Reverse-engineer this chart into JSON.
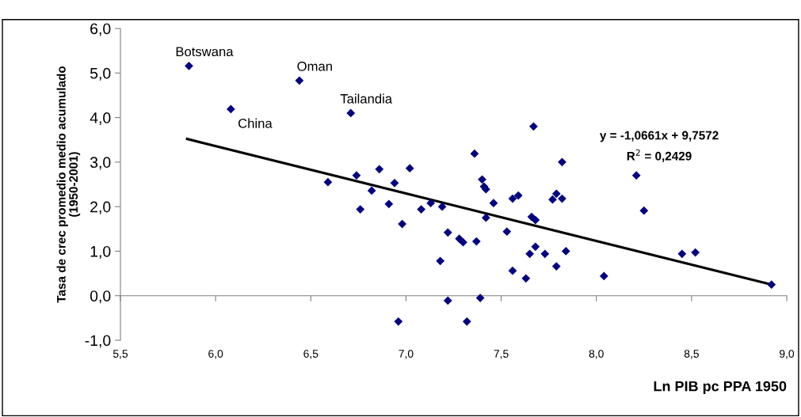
{
  "chart_data": {
    "type": "scatter",
    "xlabel": "Ln PIB pc PPA 1950",
    "ylabel": "Tasa de crec promedio medio acumulado\n(1950-2001)",
    "xlim": [
      5.5,
      9.0
    ],
    "ylim": [
      -1.0,
      6.0
    ],
    "xticks": [
      {
        "value": 5.5,
        "label": "5,5"
      },
      {
        "value": 6.0,
        "label": "6,0"
      },
      {
        "value": 6.5,
        "label": "6,5"
      },
      {
        "value": 7.0,
        "label": "7,0"
      },
      {
        "value": 7.5,
        "label": "7,5"
      },
      {
        "value": 8.0,
        "label": "8,0"
      },
      {
        "value": 8.5,
        "label": "8,5"
      },
      {
        "value": 9.0,
        "label": "9,0"
      }
    ],
    "yticks": [
      {
        "value": -1.0,
        "label": "-1,0"
      },
      {
        "value": 0.0,
        "label": "0,0"
      },
      {
        "value": 1.0,
        "label": "1,0"
      },
      {
        "value": 2.0,
        "label": "2,0"
      },
      {
        "value": 3.0,
        "label": "3,0"
      },
      {
        "value": 4.0,
        "label": "4,0"
      },
      {
        "value": 5.0,
        "label": "5,0"
      },
      {
        "value": 6.0,
        "label": "6,0"
      }
    ],
    "marker": "diamond",
    "series": [
      {
        "color": "#000080",
        "x": [
          5.86,
          6.08,
          6.44,
          6.71,
          6.59,
          6.74,
          6.86,
          7.02,
          6.82,
          6.94,
          6.76,
          6.91,
          6.98,
          7.08,
          7.13,
          7.19,
          7.22,
          7.18,
          7.28,
          7.3,
          7.37,
          7.36,
          7.4,
          7.41,
          7.42,
          7.46,
          7.42,
          7.22,
          7.39,
          6.96,
          7.32,
          7.53,
          7.56,
          7.59,
          7.56,
          7.63,
          7.65,
          7.68,
          7.66,
          7.68,
          7.73,
          7.67,
          7.82,
          7.77,
          7.79,
          7.82,
          7.79,
          7.84,
          8.04,
          8.21,
          8.25,
          8.45,
          8.52,
          8.92
        ],
        "values": [
          5.16,
          4.19,
          4.83,
          4.1,
          2.55,
          2.7,
          2.84,
          2.86,
          2.36,
          2.53,
          1.94,
          2.06,
          1.61,
          1.94,
          2.08,
          2.0,
          1.42,
          0.78,
          1.28,
          1.2,
          1.22,
          3.19,
          2.61,
          2.45,
          2.39,
          2.08,
          1.75,
          -0.11,
          -0.05,
          -0.58,
          -0.58,
          1.44,
          2.18,
          2.25,
          0.56,
          0.39,
          0.94,
          1.1,
          1.77,
          1.7,
          0.94,
          3.8,
          3.0,
          2.16,
          2.29,
          2.18,
          0.66,
          1.0,
          0.44,
          2.7,
          1.91,
          0.94,
          0.97,
          0.25
        ]
      },
      {
        "type": "line",
        "marker": "none",
        "color": "#000000",
        "line_style": "solid",
        "x": [
          5.85,
          8.92
        ],
        "values": [
          3.52,
          0.25
        ]
      }
    ],
    "annotations": [
      {
        "text": "Botswana",
        "x": 5.86,
        "y": 5.16
      },
      {
        "text": "China",
        "x": 6.08,
        "y": 4.19
      },
      {
        "text": "Oman",
        "x": 6.44,
        "y": 4.83
      },
      {
        "text": "Tailandia",
        "x": 6.71,
        "y": 4.1
      },
      "y = -1,0661x + 9,7572",
      "R$^{2}$ = 0,2429"
    ]
  }
}
